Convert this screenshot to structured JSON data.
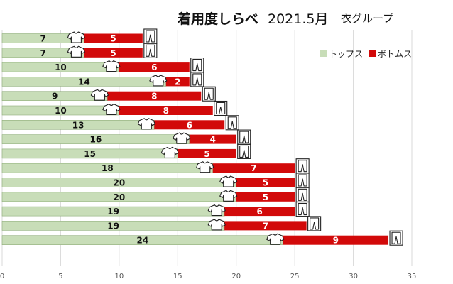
{
  "title": {
    "main": "着用度しらべ",
    "date": "2021.5月",
    "group": "衣グループ"
  },
  "colors": {
    "tops": "#c8ddb8",
    "tops_border": "#8fae7a",
    "bottoms": "#d20a0a",
    "grid": "#d9d9d9"
  },
  "chart_data": {
    "type": "bar",
    "orientation": "horizontal",
    "stacked": true,
    "series": [
      {
        "name": "トップス",
        "values": [
          7,
          7,
          10,
          14,
          9,
          10,
          13,
          16,
          15,
          18,
          20,
          20,
          19,
          19,
          24
        ]
      },
      {
        "name": "ボトムス",
        "values": [
          5,
          5,
          6,
          2,
          8,
          8,
          6,
          4,
          5,
          7,
          5,
          5,
          6,
          7,
          9
        ]
      }
    ],
    "xlim": [
      0,
      35
    ],
    "xticks": [
      0,
      5,
      10,
      15,
      20,
      25,
      30,
      35
    ],
    "grid": true,
    "legend_position": "top-right",
    "icons": {
      "tops": "tshirt-icon",
      "bottoms": "pants-icon"
    }
  }
}
